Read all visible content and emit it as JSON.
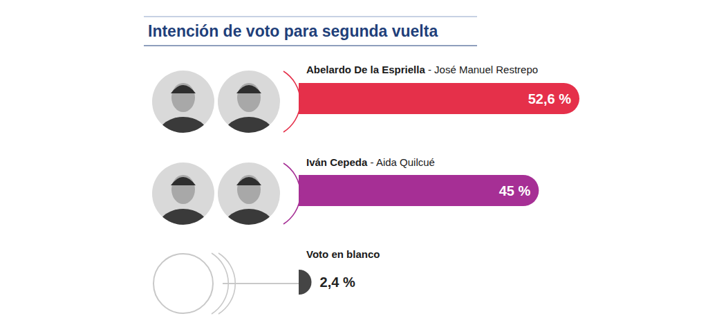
{
  "chart_data": {
    "type": "bar",
    "orientation": "horizontal",
    "title": "Intención de voto para segunda vuelta",
    "categories": [
      "Abelardo De la Espriella - José Manuel Restrepo",
      "Iván Cepeda - Aida Quilcué",
      "Voto en blanco"
    ],
    "values": [
      52.6,
      45,
      2.4
    ],
    "value_labels": [
      "52,6 %",
      "45 %",
      "2,4 %"
    ],
    "colors": [
      "#e5304a",
      "#a62f95",
      "#454545"
    ],
    "data_labels": true,
    "tick_labels": false,
    "grid": false
  }
}
